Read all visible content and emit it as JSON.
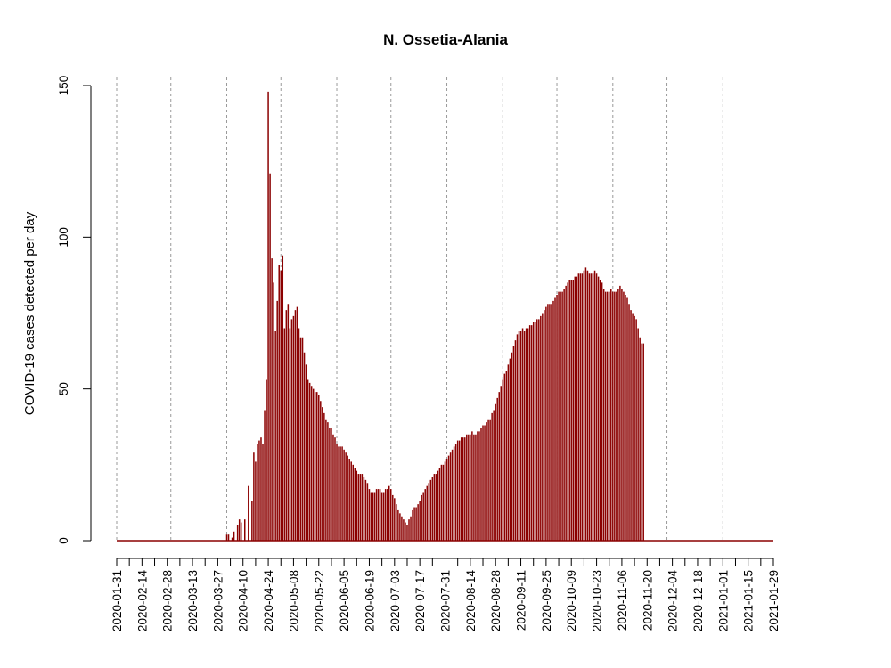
{
  "chart_data": {
    "type": "bar",
    "title": "N. Ossetia-Alania",
    "xlabel": "",
    "ylabel": "COVID-19 cases detected per day",
    "x_start": "2020-01-31",
    "x_end": "2021-01-29",
    "ylim": [
      0,
      150
    ],
    "y_ticks": [
      0,
      50,
      100,
      150
    ],
    "x_ticks": [
      "2020-01-31",
      "2020-02-14",
      "2020-02-28",
      "2020-03-13",
      "2020-03-27",
      "2020-04-10",
      "2020-04-24",
      "2020-05-08",
      "2020-05-22",
      "2020-06-05",
      "2020-06-19",
      "2020-07-03",
      "2020-07-17",
      "2020-07-31",
      "2020-08-14",
      "2020-08-28",
      "2020-09-11",
      "2020-09-25",
      "2020-10-09",
      "2020-10-23",
      "2020-11-06",
      "2020-11-20",
      "2020-12-04",
      "2020-12-18",
      "2021-01-01",
      "2021-01-15",
      "2021-01-29"
    ],
    "grid_dates": [
      "2020-01-31",
      "2020-03-01",
      "2020-04-01",
      "2020-05-01",
      "2020-06-01",
      "2020-07-01",
      "2020-08-01",
      "2020-09-01",
      "2020-10-01",
      "2020-11-01",
      "2020-12-01",
      "2021-01-01"
    ],
    "bar_color": "#8b0000",
    "values": [
      0,
      0,
      0,
      0,
      0,
      0,
      0,
      0,
      0,
      0,
      0,
      0,
      0,
      0,
      0,
      0,
      0,
      0,
      0,
      0,
      0,
      0,
      0,
      0,
      0,
      0,
      0,
      0,
      0,
      0,
      0,
      0,
      0,
      0,
      0,
      0,
      0,
      0,
      0,
      0,
      0,
      0,
      0,
      0,
      0,
      0,
      0,
      0,
      0,
      0,
      0,
      0,
      0,
      0,
      0,
      0,
      0,
      0,
      0,
      0,
      0,
      2,
      2,
      0,
      1,
      3,
      0,
      5,
      7,
      6,
      0,
      7,
      0,
      18,
      0,
      13,
      29,
      26,
      32,
      33,
      34,
      32,
      43,
      53,
      148,
      121,
      93,
      85,
      69,
      79,
      91,
      89,
      94,
      70,
      76,
      78,
      70,
      73,
      74,
      76,
      77,
      70,
      67,
      67,
      62,
      58,
      53,
      52,
      51,
      50,
      49,
      49,
      48,
      46,
      44,
      42,
      40,
      39,
      37,
      37,
      35,
      34,
      32,
      31,
      31,
      31,
      30,
      29,
      28,
      27,
      26,
      25,
      24,
      23,
      22,
      22,
      22,
      21,
      20,
      19,
      17,
      16,
      16,
      16,
      17,
      17,
      17,
      16,
      16,
      17,
      17,
      18,
      17,
      15,
      14,
      12,
      10,
      9,
      8,
      7,
      6,
      5,
      7,
      8,
      10,
      11,
      11,
      12,
      13,
      15,
      16,
      17,
      18,
      19,
      20,
      21,
      22,
      22,
      23,
      24,
      25,
      25,
      26,
      27,
      28,
      29,
      30,
      31,
      32,
      33,
      33,
      34,
      34,
      34,
      35,
      35,
      35,
      36,
      35,
      35,
      36,
      36,
      37,
      38,
      38,
      39,
      40,
      40,
      42,
      43,
      45,
      47,
      49,
      51,
      53,
      55,
      56,
      58,
      60,
      62,
      64,
      66,
      68,
      69,
      69,
      70,
      69,
      70,
      70,
      71,
      71,
      72,
      72,
      73,
      73,
      74,
      75,
      76,
      77,
      78,
      78,
      78,
      79,
      80,
      81,
      82,
      82,
      82,
      83,
      84,
      85,
      86,
      86,
      86,
      87,
      87,
      88,
      88,
      88,
      89,
      90,
      89,
      88,
      88,
      88,
      89,
      88,
      87,
      86,
      85,
      83,
      82,
      82,
      82,
      83,
      82,
      82,
      82,
      83,
      84,
      83,
      82,
      81,
      80,
      78,
      76,
      75,
      74,
      73,
      70,
      67,
      65,
      65
    ]
  }
}
